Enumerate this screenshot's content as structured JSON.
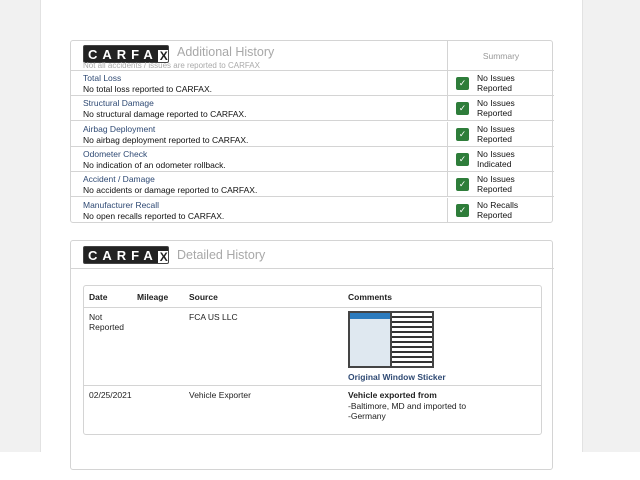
{
  "additional": {
    "logo": "CARFAX",
    "title": "Additional History",
    "subtitle": "Not all accidents / issues are reported to CARFAX",
    "summary_header": "Summary",
    "rows": [
      {
        "title": "Total Loss",
        "desc": "No total loss reported to CARFAX.",
        "status": "No Issues Reported"
      },
      {
        "title": "Structural Damage",
        "desc": "No structural damage reported to CARFAX.",
        "status": "No Issues Reported"
      },
      {
        "title": "Airbag Deployment",
        "desc": "No airbag deployment reported to CARFAX.",
        "status": "No Issues Reported"
      },
      {
        "title": "Odometer Check",
        "desc": "No indication of an odometer rollback.",
        "status": "No Issues Indicated"
      },
      {
        "title": "Accident / Damage",
        "desc": "No accidents or damage reported to CARFAX.",
        "status": "No Issues Reported"
      },
      {
        "title": "Manufacturer Recall",
        "desc": "No open recalls reported to CARFAX.",
        "status": "No Recalls Reported"
      }
    ],
    "check_color": "#2e7d3a"
  },
  "detailed": {
    "logo": "CARFAX",
    "title": "Detailed History",
    "columns": [
      "Date",
      "Mileage",
      "Source",
      "Comments"
    ],
    "rows": [
      {
        "date": "Not Reported",
        "mileage": "",
        "source": "FCA US LLC",
        "comment": "",
        "link": "Original Window Sticker"
      },
      {
        "date": "02/25/2021",
        "mileage": "",
        "source": "Vehicle Exporter",
        "comment_title": "Vehicle exported from",
        "comment": "-Baltimore, MD and imported to\n-Germany"
      }
    ]
  }
}
